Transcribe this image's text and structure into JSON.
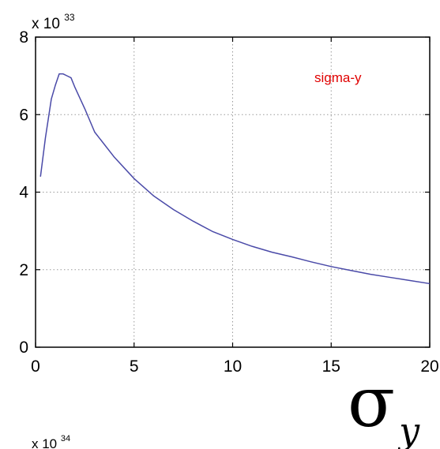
{
  "chart_data": {
    "type": "line",
    "title": "",
    "xlabel": "",
    "ylabel": "",
    "xlim": [
      0,
      20
    ],
    "ylim": [
      0,
      8
    ],
    "grid": true,
    "y_multiplier": "x 10",
    "y_multiplier_exponent": "33",
    "bottom_multiplier": "x 10",
    "bottom_multiplier_exponent": "34",
    "x_ticks": [
      "0",
      "5",
      "10",
      "15",
      "20"
    ],
    "y_ticks": [
      "0",
      "2",
      "4",
      "6",
      "8"
    ],
    "legend_position": "top-right",
    "symbol_base": "σ",
    "symbol_subscript": "y",
    "series": [
      {
        "name": "sigma-y",
        "color": "#4a4aa8",
        "label_color": "#e00000",
        "x": [
          0.25,
          0.5,
          0.8,
          1.0,
          1.2,
          1.4,
          1.6,
          1.8,
          2.0,
          2.5,
          3.0,
          4.0,
          5.0,
          6.0,
          7.0,
          8.0,
          9.0,
          10.0,
          11.0,
          12.0,
          13.0,
          14.0,
          15.0,
          16.0,
          17.0,
          18.0,
          19.0,
          20.0
        ],
        "y": [
          4.4,
          5.4,
          6.4,
          6.75,
          7.05,
          7.05,
          7.0,
          6.95,
          6.7,
          6.15,
          5.55,
          4.9,
          4.35,
          3.9,
          3.55,
          3.25,
          2.98,
          2.78,
          2.6,
          2.45,
          2.33,
          2.2,
          2.08,
          1.98,
          1.88,
          1.8,
          1.72,
          1.64
        ]
      }
    ]
  }
}
